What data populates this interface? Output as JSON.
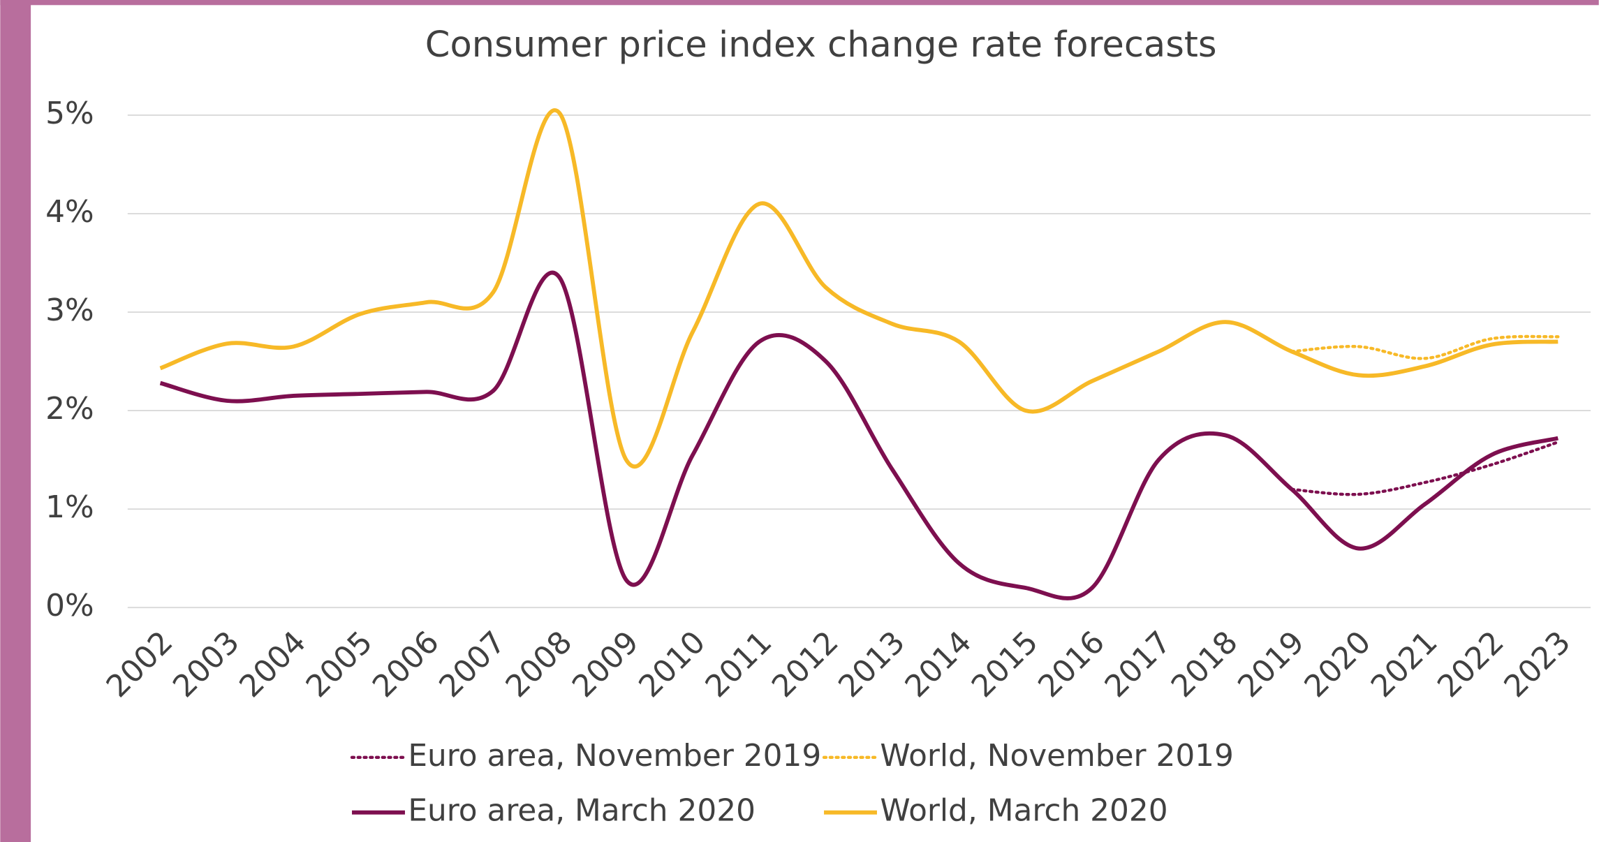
{
  "chart_data": {
    "type": "line",
    "title": "Consumer price index change rate forecasts",
    "categories": [
      "2002",
      "2003",
      "2004",
      "2005",
      "2006",
      "2007",
      "2008",
      "2009",
      "2010",
      "2011",
      "2012",
      "2013",
      "2014",
      "2015",
      "2016",
      "2017",
      "2018",
      "2019",
      "2020",
      "2021",
      "2022",
      "2023"
    ],
    "series": [
      {
        "name": "Euro area, November 2019",
        "color": "#7d0f4f",
        "line_style": "dotted",
        "values": [
          null,
          null,
          null,
          null,
          null,
          null,
          null,
          null,
          null,
          null,
          null,
          null,
          null,
          null,
          null,
          null,
          null,
          1.2,
          1.15,
          1.27,
          1.45,
          1.68
        ]
      },
      {
        "name": "World, November 2019",
        "color": "#f7b927",
        "line_style": "dotted",
        "values": [
          null,
          null,
          null,
          null,
          null,
          null,
          null,
          null,
          null,
          null,
          null,
          null,
          null,
          null,
          null,
          null,
          null,
          2.6,
          2.65,
          2.53,
          2.73,
          2.75
        ]
      },
      {
        "name": "Euro area, March 2020",
        "color": "#7d0f4f",
        "line_style": "solid",
        "values": [
          2.28,
          2.1,
          2.15,
          2.17,
          2.19,
          2.2,
          3.35,
          0.28,
          1.55,
          2.7,
          2.5,
          1.4,
          0.45,
          0.2,
          0.2,
          1.5,
          1.75,
          1.2,
          0.6,
          1.05,
          1.55,
          1.72
        ]
      },
      {
        "name": "World, March 2020",
        "color": "#f7b927",
        "line_style": "solid",
        "values": [
          2.43,
          2.68,
          2.65,
          2.98,
          3.1,
          3.2,
          5.02,
          1.5,
          2.8,
          4.1,
          3.25,
          2.88,
          2.7,
          2.0,
          2.3,
          2.6,
          2.9,
          2.6,
          2.36,
          2.45,
          2.67,
          2.7
        ]
      }
    ],
    "ylim": [
      0,
      5
    ],
    "yticks": [
      {
        "value": 0,
        "label": "0%"
      },
      {
        "value": 1,
        "label": "1%"
      },
      {
        "value": 2,
        "label": "2%"
      },
      {
        "value": 3,
        "label": "3%"
      },
      {
        "value": 4,
        "label": "4%"
      },
      {
        "value": 5,
        "label": "5%"
      }
    ],
    "grid": true,
    "legend": "bottom"
  }
}
